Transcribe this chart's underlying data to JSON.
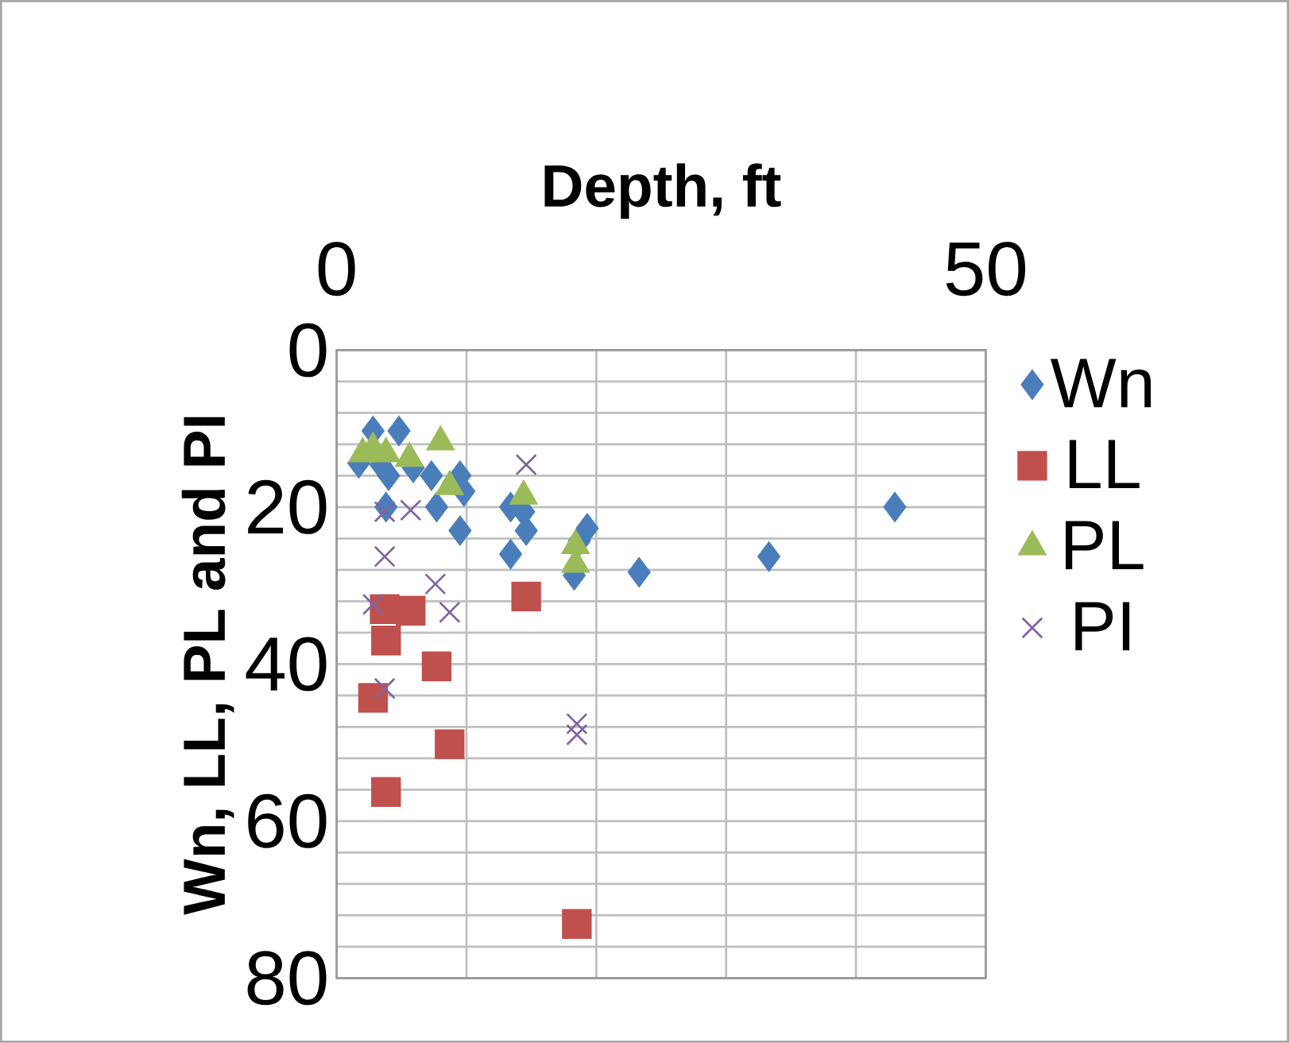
{
  "chart_data": {
    "type": "scatter",
    "xlabel": "Depth, ft",
    "ylabel": "Wn, LL, PL and PI",
    "xlim": [
      0,
      50
    ],
    "ylim": [
      80,
      0
    ],
    "xticks": [
      0,
      {
        "value": 10,
        "label": null
      },
      {
        "value": 20,
        "label": null
      },
      {
        "value": 30,
        "label": null
      },
      {
        "value": 40,
        "label": null
      },
      50
    ],
    "yticks": [
      0,
      {
        "value": 4,
        "label": null
      },
      {
        "value": 8,
        "label": null
      },
      {
        "value": 12,
        "label": null
      },
      {
        "value": 16,
        "label": null
      },
      20,
      {
        "value": 24,
        "label": null
      },
      {
        "value": 28,
        "label": null
      },
      {
        "value": 32,
        "label": null
      },
      {
        "value": 36,
        "label": null
      },
      40,
      {
        "value": 44,
        "label": null
      },
      {
        "value": 48,
        "label": null
      },
      {
        "value": 52,
        "label": null
      },
      {
        "value": 56,
        "label": null
      },
      60,
      {
        "value": 64,
        "label": null
      },
      {
        "value": 68,
        "label": null
      },
      {
        "value": 72,
        "label": null
      },
      {
        "value": 76,
        "label": null
      },
      80
    ],
    "grid": true,
    "legend": "right",
    "series": [
      {
        "name": "Wn",
        "color": "#4a7ebb",
        "marker": "diamond",
        "x": [
          1.7,
          2.8,
          4.8,
          3.4,
          4,
          3.8,
          5.9,
          7.3,
          7.7,
          9.5,
          9.8,
          9.5,
          13.4,
          14.6,
          13.4,
          14.4,
          19.3,
          18.7,
          18.3,
          23.3,
          33.3,
          43
        ],
        "values": [
          14.4,
          10.3,
          10.3,
          14.6,
          16,
          20,
          15,
          16,
          20,
          16,
          18,
          23,
          20,
          23,
          26,
          20.6,
          22.7,
          24.3,
          28.7,
          28.3,
          26.3,
          20
        ]
      },
      {
        "name": "LL",
        "color": "#c0504d",
        "marker": "square",
        "x": [
          3.7,
          5.7,
          3.8,
          7.7,
          2.8,
          8.7,
          3.8,
          14.6,
          18.5
        ],
        "values": [
          33,
          33.2,
          37,
          40.3,
          44.3,
          50.2,
          56.3,
          31.4,
          73.1
        ]
      },
      {
        "name": "PL",
        "color": "#9bbb59",
        "marker": "triangle",
        "x": [
          2,
          2.8,
          3.8,
          5.6,
          8,
          8.7,
          14.4,
          18.4,
          18.4
        ],
        "values": [
          13.2,
          12.5,
          13.2,
          13.8,
          11.7,
          17.4,
          18.6,
          24.9,
          27.3
        ]
      },
      {
        "name": "PI",
        "color": "#8064a2",
        "marker": "cross",
        "x": [
          2.8,
          8.7,
          3.7,
          18.5,
          18.5,
          7.6,
          14.6,
          3.7,
          5.7,
          3.7
        ],
        "values": [
          32.4,
          33.4,
          43.1,
          47.6,
          49,
          29.8,
          14.6,
          20.6,
          20.4,
          26.3
        ]
      }
    ]
  }
}
